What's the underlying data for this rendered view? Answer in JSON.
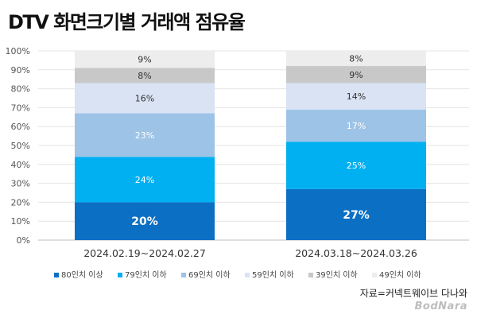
{
  "title": "DTV 화면크기별 거래액 점유율",
  "source": "자료=커넥트웨이브 다나와",
  "watermark": "BodNara",
  "chart_data": {
    "type": "bar",
    "stacked": true,
    "categories": [
      "2024.02.19~2024.02.27",
      "2024.03.18~2024.03.26"
    ],
    "series": [
      {
        "name": "80인치 이상",
        "color": "#0b6fc4",
        "values": [
          20,
          27
        ]
      },
      {
        "name": "79인치 이하",
        "color": "#00b0f0",
        "values": [
          24,
          25
        ]
      },
      {
        "name": "69인치 이하",
        "color": "#9dc3e6",
        "values": [
          23,
          17
        ]
      },
      {
        "name": "59인치 이하",
        "color": "#d9e3f4",
        "values": [
          16,
          14
        ]
      },
      {
        "name": "39인치 이하",
        "color": "#c8c8c8",
        "values": [
          8,
          9
        ]
      },
      {
        "name": "49인치 이하",
        "color": "#ededed",
        "values": [
          9,
          8
        ]
      }
    ],
    "yticks": [
      "0%",
      "10%",
      "20%",
      "30%",
      "40%",
      "50%",
      "60%",
      "70%",
      "80%",
      "90%",
      "100%"
    ],
    "ylim": [
      0,
      100
    ],
    "grid": true,
    "legend_position": "bottom"
  }
}
